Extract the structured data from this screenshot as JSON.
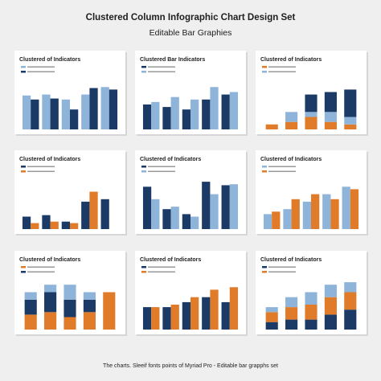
{
  "header": {
    "title": "Clustered Column Infographic Chart Design Set",
    "subtitle": "Editable Bar Graphies"
  },
  "footer": {
    "text": "The charts. Sleeif fonts points of Myriad Pro  - Editable bar grapphs set"
  },
  "chart_data": [
    {
      "type": "bar",
      "title": "Clustered of Indicators",
      "ylim": [
        0,
        100
      ],
      "stacked": false,
      "series": [
        {
          "color": "#8fb4d9",
          "values": [
            68,
            70,
            60,
            70,
            85
          ]
        },
        {
          "color": "#1b3a66",
          "values": [
            60,
            62,
            40,
            83,
            80
          ]
        }
      ]
    },
    {
      "type": "bar",
      "title": "Clustered Bar Indicators",
      "ylim": [
        0,
        100
      ],
      "stacked": false,
      "series": [
        {
          "color": "#1b3a66",
          "values": [
            50,
            45,
            40,
            60,
            70
          ]
        },
        {
          "color": "#8fb4d9",
          "values": [
            55,
            65,
            60,
            85,
            75
          ]
        }
      ]
    },
    {
      "type": "bar",
      "title": "Clustered of Indicators",
      "ylim": [
        0,
        100
      ],
      "stacked": true,
      "series": [
        {
          "color": "#e07b2a",
          "values": [
            10,
            15,
            25,
            15,
            10
          ]
        },
        {
          "color": "#8fb4d9",
          "values": [
            0,
            20,
            10,
            20,
            15
          ]
        },
        {
          "color": "#1b3a66",
          "values": [
            0,
            0,
            35,
            40,
            55
          ]
        }
      ]
    },
    {
      "type": "bar",
      "title": "Clustered of Indicators",
      "ylim": [
        0,
        100
      ],
      "stacked": false,
      "series": [
        {
          "color": "#1b3a66",
          "values": [
            25,
            28,
            15,
            55,
            60
          ]
        },
        {
          "color": "#e07b2a",
          "values": [
            12,
            15,
            12,
            75,
            0
          ]
        }
      ]
    },
    {
      "type": "bar",
      "title": "Clustered of Indicators",
      "ylim": [
        0,
        100
      ],
      "stacked": false,
      "series": [
        {
          "color": "#1b3a66",
          "values": [
            85,
            40,
            30,
            95,
            88
          ]
        },
        {
          "color": "#8fb4d9",
          "values": [
            60,
            45,
            25,
            70,
            90
          ]
        }
      ]
    },
    {
      "type": "bar",
      "title": "Clustered of Indicators",
      "ylim": [
        0,
        100
      ],
      "stacked": false,
      "series": [
        {
          "color": "#8fb4d9",
          "values": [
            30,
            40,
            55,
            70,
            85
          ]
        },
        {
          "color": "#e07b2a",
          "values": [
            35,
            60,
            70,
            60,
            80
          ]
        }
      ]
    },
    {
      "type": "bar",
      "title": "Clustered of Indicators",
      "ylim": [
        0,
        100
      ],
      "stacked": true,
      "series": [
        {
          "color": "#e07b2a",
          "values": [
            30,
            35,
            25,
            35,
            75
          ]
        },
        {
          "color": "#1b3a66",
          "values": [
            30,
            40,
            35,
            25,
            0
          ]
        },
        {
          "color": "#8fb4d9",
          "values": [
            15,
            15,
            30,
            15,
            0
          ]
        }
      ]
    },
    {
      "type": "bar",
      "title": "Clustered of Indicators",
      "ylim": [
        0,
        100
      ],
      "stacked": false,
      "series": [
        {
          "color": "#1b3a66",
          "values": [
            45,
            45,
            55,
            65,
            55
          ]
        },
        {
          "color": "#e07b2a",
          "values": [
            45,
            50,
            65,
            80,
            85
          ]
        }
      ]
    },
    {
      "type": "bar",
      "title": "Clustered of Indicators",
      "ylim": [
        0,
        100
      ],
      "stacked": true,
      "series": [
        {
          "color": "#1b3a66",
          "values": [
            15,
            20,
            20,
            30,
            40
          ]
        },
        {
          "color": "#e07b2a",
          "values": [
            20,
            25,
            30,
            35,
            35
          ]
        },
        {
          "color": "#8fb4d9",
          "values": [
            10,
            20,
            25,
            25,
            20
          ]
        }
      ]
    }
  ]
}
